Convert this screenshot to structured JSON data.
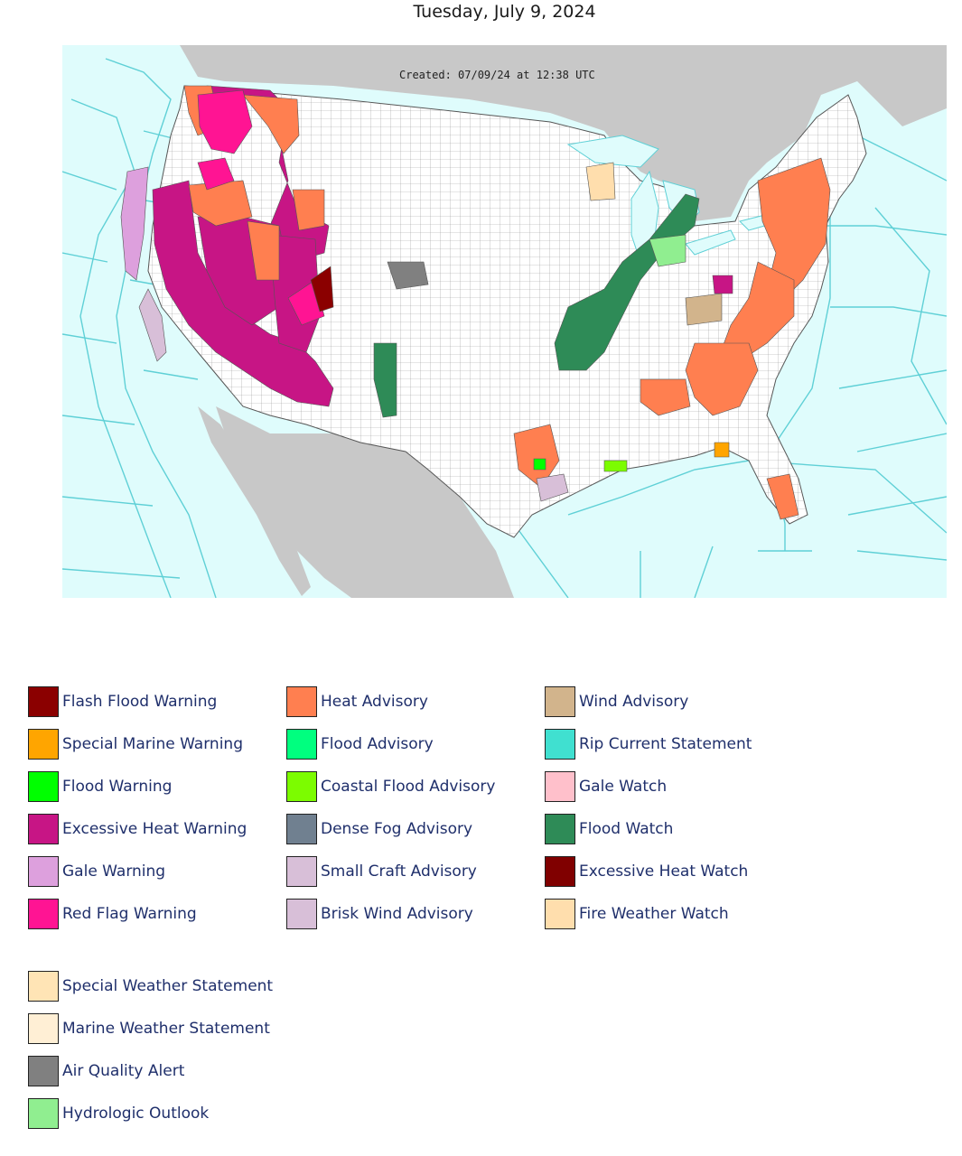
{
  "title": "Tuesday, July 9, 2024",
  "map": {
    "created_stamp": "Created: 07/09/24 at 12:38 UTC",
    "colors": {
      "ocean": "#dffcfc",
      "land_outside": "#c8c8c8",
      "land_us": "#ffffff",
      "marine_zone_lines": "#5fd0d6",
      "county_lines": "#8a8a8a"
    }
  },
  "legend": [
    {
      "label": "Flash Flood Warning",
      "color": "#8b0000"
    },
    {
      "label": "Special Marine Warning",
      "color": "#ffa500"
    },
    {
      "label": "Flood Warning",
      "color": "#00ff00"
    },
    {
      "label": "Excessive Heat Warning",
      "color": "#c71585"
    },
    {
      "label": "Gale Warning",
      "color": "#dda0dd"
    },
    {
      "label": "Red Flag Warning",
      "color": "#ff1493"
    },
    {
      "label": "Heat Advisory",
      "color": "#ff7f50"
    },
    {
      "label": "Flood Advisory",
      "color": "#00ff7f"
    },
    {
      "label": "Coastal Flood Advisory",
      "color": "#7cfc00"
    },
    {
      "label": "Dense Fog Advisory",
      "color": "#708090"
    },
    {
      "label": "Small Craft Advisory",
      "color": "#d8bfd8"
    },
    {
      "label": "Brisk Wind Advisory",
      "color": "#d8bfd8"
    },
    {
      "label": "Wind Advisory",
      "color": "#d2b48c"
    },
    {
      "label": "Rip Current Statement",
      "color": "#40e0d0"
    },
    {
      "label": "Gale Watch",
      "color": "#ffc0cb"
    },
    {
      "label": "Flood Watch",
      "color": "#2e8b57"
    },
    {
      "label": "Excessive Heat Watch",
      "color": "#800000"
    },
    {
      "label": "Fire Weather Watch",
      "color": "#ffdead"
    },
    {
      "label": "Special Weather Statement",
      "color": "#ffe4b5"
    },
    {
      "label": "Marine Weather Statement",
      "color": "#ffefd5"
    },
    {
      "label": "Air Quality Alert",
      "color": "#808080"
    },
    {
      "label": "Hydrologic Outlook",
      "color": "#90ee90"
    }
  ]
}
